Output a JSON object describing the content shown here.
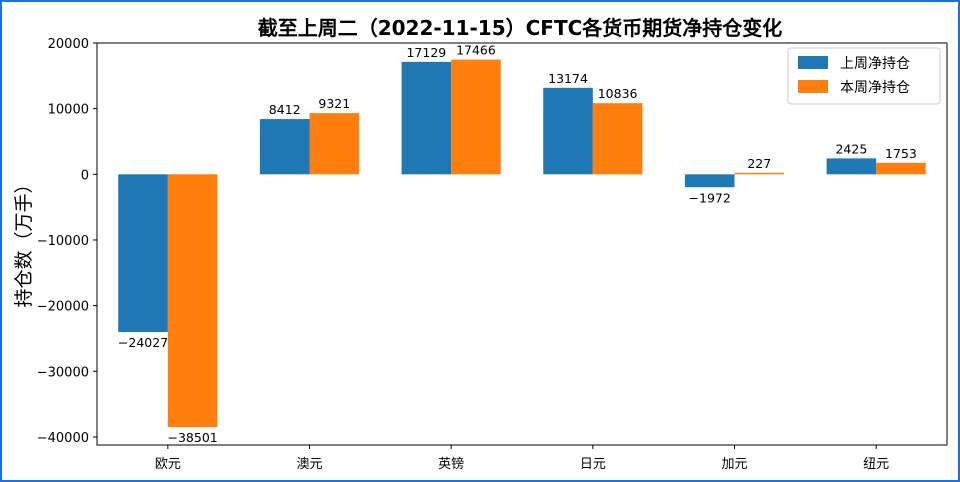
{
  "chart_data": {
    "type": "bar",
    "title": "截至上周二（2022-11-15）CFTC各货币期货净持仓变化",
    "xlabel": "",
    "ylabel": "持仓数（万手）",
    "categories": [
      "欧元",
      "澳元",
      "英镑",
      "日元",
      "加元",
      "纽元"
    ],
    "series": [
      {
        "name": "上周净持仓",
        "values": [
          -24027,
          8412,
          17129,
          13174,
          -1972,
          2425
        ],
        "color": "#1f77b4"
      },
      {
        "name": "本周净持仓",
        "values": [
          -38501,
          9321,
          17466,
          10836,
          227,
          1753
        ],
        "color": "#ff7f0e"
      }
    ],
    "ylim": [
      -41226,
      20000
    ],
    "yticks": [
      -40000,
      -30000,
      -20000,
      -10000,
      0,
      10000,
      20000
    ],
    "grid": false,
    "legend": "top-right"
  }
}
